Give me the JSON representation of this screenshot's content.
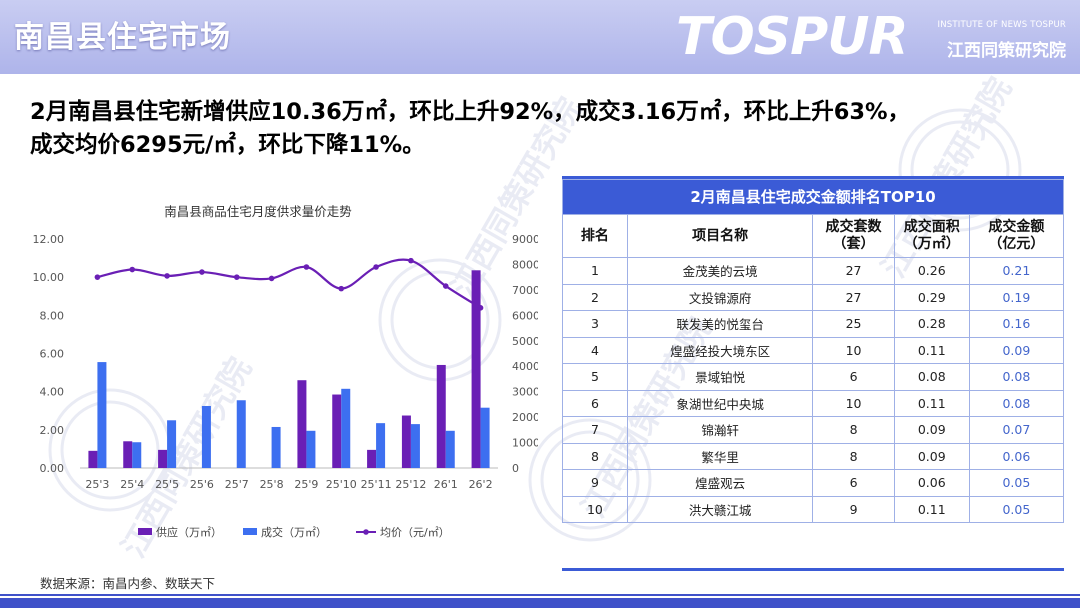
{
  "header": {
    "title": "南昌县住宅市场",
    "logo_main": "TOSPUR",
    "logo_sub_en": "INSTITUTE OF NEWS TOSPUR",
    "logo_sub_cn": "江西同策研究院"
  },
  "headline": {
    "line1": "2月南昌县住宅新增供应10.36万㎡，环比上升92%，成交3.16万㎡，环比上升63%，",
    "line2": "成交均价6295元/㎡，环比下降11%。"
  },
  "chart_data": {
    "type": "bar",
    "title": "南昌县商品住宅月度供求量价走势",
    "categories": [
      "25'3",
      "25'4",
      "25'5",
      "25'6",
      "25'7",
      "25'8",
      "25'9",
      "25'10",
      "25'11",
      "25'12",
      "26'1",
      "26'2"
    ],
    "series": [
      {
        "name": "供应（万㎡）",
        "type": "bar",
        "axis": "left",
        "color": "#6a1fb5",
        "values": [
          0.9,
          1.4,
          0.95,
          0,
          0,
          0,
          4.6,
          3.85,
          0.95,
          2.75,
          5.4,
          10.36
        ]
      },
      {
        "name": "成交（万㎡）",
        "type": "bar",
        "axis": "left",
        "color": "#3d6ff0",
        "values": [
          5.55,
          1.35,
          2.5,
          3.25,
          3.55,
          2.15,
          1.95,
          4.15,
          2.35,
          2.3,
          1.95,
          3.16
        ]
      },
      {
        "name": "均价（元/㎡）",
        "type": "line",
        "axis": "right",
        "color": "#6a1fb5",
        "values": [
          7500,
          7800,
          7550,
          7700,
          7500,
          7450,
          7900,
          7050,
          7900,
          8150,
          7150,
          6295
        ]
      }
    ],
    "y_left": {
      "min": 0,
      "max": 12,
      "step": 2,
      "ticks": [
        "0.00",
        "2.00",
        "4.00",
        "6.00",
        "8.00",
        "10.00",
        "12.00"
      ]
    },
    "y_right": {
      "min": 0,
      "max": 9000,
      "step": 1000,
      "ticks": [
        "0",
        "1000",
        "2000",
        "3000",
        "4000",
        "5000",
        "6000",
        "7000",
        "8000",
        "9000"
      ]
    },
    "legend_position": "bottom",
    "grid": false
  },
  "table": {
    "title": "2月南昌县住宅成交金额排名TOP10",
    "headers": [
      "排名",
      "项目名称",
      "成交套数\n（套）",
      "成交面积\n（万㎡）",
      "成交金额\n（亿元）"
    ],
    "rows": [
      [
        "1",
        "金茂美的云境",
        "27",
        "0.26",
        "0.21"
      ],
      [
        "2",
        "文投锦源府",
        "27",
        "0.29",
        "0.19"
      ],
      [
        "3",
        "联发美的悦玺台",
        "25",
        "0.28",
        "0.16"
      ],
      [
        "4",
        "煌盛经投大境东区",
        "10",
        "0.11",
        "0.09"
      ],
      [
        "5",
        "景域铂悦",
        "6",
        "0.08",
        "0.08"
      ],
      [
        "6",
        "象湖世纪中央城",
        "10",
        "0.11",
        "0.08"
      ],
      [
        "7",
        "锦瀚轩",
        "8",
        "0.09",
        "0.07"
      ],
      [
        "8",
        "繁华里",
        "8",
        "0.09",
        "0.06"
      ],
      [
        "9",
        "煌盛观云",
        "6",
        "0.06",
        "0.05"
      ],
      [
        "10",
        "洪大赣江城",
        "9",
        "0.11",
        "0.05"
      ]
    ]
  },
  "source": "数据来源：南昌内参、数联天下",
  "watermark_text": "江西同策研究院"
}
